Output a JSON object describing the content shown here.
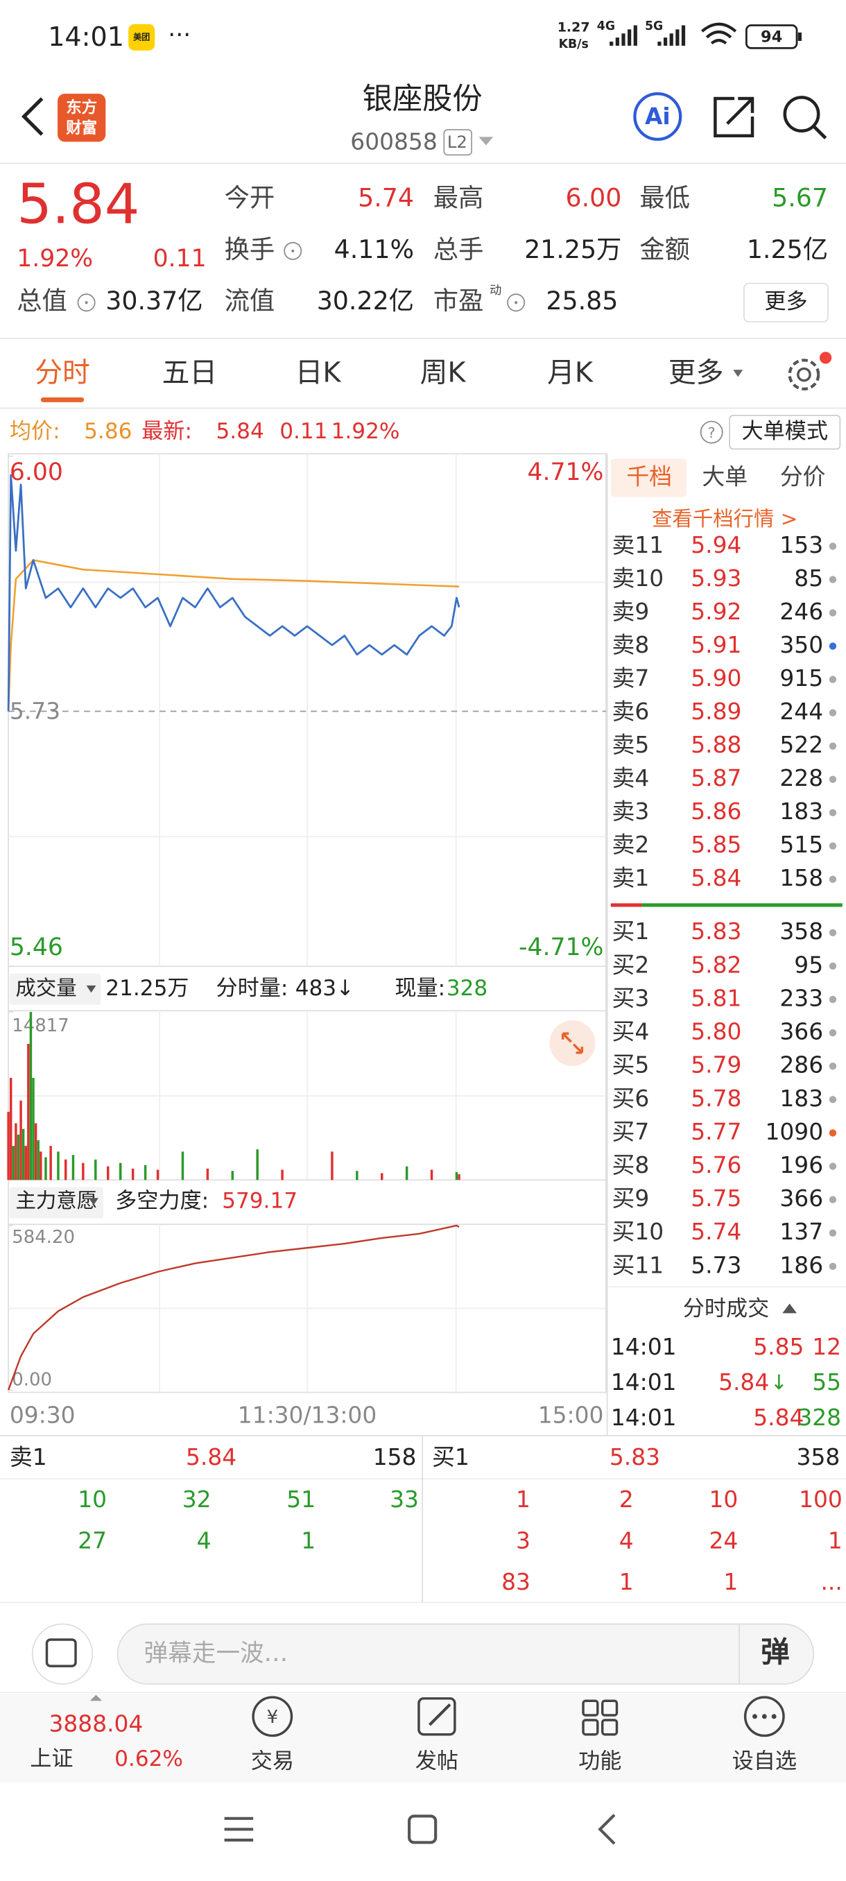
{
  "status_bar": {
    "time": "14:01",
    "app_icon": "美团",
    "speed": "1.27",
    "speed_unit": "KB/s",
    "net1": "4G",
    "net2": "5G",
    "battery": "94"
  },
  "header": {
    "logo": [
      "东方",
      "财富"
    ],
    "title": "银座股份",
    "code": "600858",
    "level": "L2",
    "ai": "Ai"
  },
  "quote": {
    "price": "5.84",
    "change_pct": "1.92%",
    "change": "0.11",
    "more": "更多",
    "fields": [
      {
        "label": "今开",
        "value": "5.74",
        "color": "#e03030"
      },
      {
        "label": "最高",
        "value": "6.00",
        "color": "#e03030"
      },
      {
        "label": "最低",
        "value": "5.67",
        "color": "#2a9a2a"
      },
      {
        "label": "换手",
        "value": "4.11%"
      },
      {
        "label": "总手",
        "value": "21.25万"
      },
      {
        "label": "金额",
        "value": "1.25亿"
      },
      {
        "label": "总值",
        "value": "30.37亿"
      },
      {
        "label": "流值",
        "value": "30.22亿"
      },
      {
        "label": "市盈",
        "super": "动",
        "value": "25.85"
      }
    ]
  },
  "tabs": {
    "items": [
      "分时",
      "五日",
      "日K",
      "周K",
      "月K",
      "更多"
    ],
    "active": 0
  },
  "summary": {
    "avg_label": "均价:",
    "avg": "5.86",
    "latest_label": "最新:",
    "latest": "5.84",
    "change": "0.11",
    "change_pct": "1.92%",
    "mode": "大单模式"
  },
  "price_chart": {
    "ylim": [
      5.46,
      6.0
    ],
    "top_label": "6.00",
    "bottom_label": "5.46",
    "top_pct": "4.71%",
    "bottom_pct": "-4.71%",
    "prev_close": 5.73,
    "x": [
      "09:30",
      "09:31",
      "09:33",
      "09:35",
      "09:37",
      "09:40",
      "09:45",
      "09:50",
      "09:55",
      "10:00",
      "10:05",
      "10:10",
      "10:15",
      "10:20",
      "10:25",
      "10:30",
      "10:35",
      "10:40",
      "10:45",
      "10:50",
      "10:55",
      "11:00",
      "11:05",
      "11:10",
      "11:15",
      "11:20",
      "11:25",
      "11:30",
      "13:05",
      "13:10",
      "13:15",
      "13:20",
      "13:25",
      "13:30",
      "13:35",
      "13:40",
      "13:45",
      "13:50",
      "13:55",
      "13:58",
      "14:00",
      "14:01"
    ],
    "price": [
      5.73,
      5.98,
      5.9,
      5.97,
      5.86,
      5.89,
      5.85,
      5.86,
      5.84,
      5.86,
      5.84,
      5.86,
      5.85,
      5.86,
      5.84,
      5.85,
      5.82,
      5.85,
      5.84,
      5.86,
      5.84,
      5.85,
      5.83,
      5.82,
      5.81,
      5.82,
      5.81,
      5.82,
      5.81,
      5.8,
      5.81,
      5.79,
      5.8,
      5.79,
      5.8,
      5.79,
      5.81,
      5.82,
      5.81,
      5.82,
      5.85,
      5.84
    ],
    "avg_x": [
      "09:30",
      "09:31",
      "09:33",
      "09:40",
      "10:00",
      "10:30",
      "11:00",
      "11:30",
      "13:30",
      "14:01"
    ],
    "avg": [
      5.73,
      5.8,
      5.87,
      5.89,
      5.88,
      5.875,
      5.87,
      5.868,
      5.865,
      5.862
    ],
    "xtick_labels": [
      "09:30",
      "11:30/13:00",
      "15:00"
    ]
  },
  "volume_chart": {
    "label": "成交量",
    "total": "21.25万",
    "period_label": "分时量:",
    "period": "483",
    "arrow": "↓",
    "current_label": "现量:",
    "current": "328",
    "max_label": "14817",
    "ylim": [
      0,
      14817
    ],
    "x": [
      "09:30",
      "09:31",
      "09:32",
      "09:33",
      "09:34",
      "09:35",
      "09:36",
      "09:37",
      "09:38",
      "09:39",
      "09:40",
      "09:41",
      "09:42",
      "09:43",
      "09:45",
      "09:47",
      "09:50",
      "09:53",
      "09:56",
      "10:00",
      "10:05",
      "10:10",
      "10:15",
      "10:20",
      "10:25",
      "10:30",
      "10:40",
      "10:50",
      "11:00",
      "11:10",
      "11:20",
      "13:10",
      "13:20",
      "13:30",
      "13:40",
      "13:50",
      "14:00",
      "14:01"
    ],
    "values": [
      6000,
      9000,
      3000,
      5000,
      4000,
      7000,
      4500,
      3000,
      12000,
      14817,
      9000,
      5000,
      3500,
      2500,
      2000,
      3000,
      2500,
      1800,
      2200,
      1500,
      1800,
      1200,
      1500,
      1000,
      1300,
      900,
      2500,
      1000,
      800,
      2700,
      900,
      2500,
      800,
      600,
      1200,
      900,
      700,
      500
    ],
    "colors": [
      "#e03030",
      "#e03030",
      "#2a9a2a",
      "#e03030",
      "#2a9a2a",
      "#e03030",
      "#2a9a2a",
      "#e03030",
      "#e03030",
      "#2a9a2a",
      "#2a9a2a",
      "#e03030",
      "#2a9a2a",
      "#e03030",
      "#2a9a2a",
      "#e03030",
      "#2a9a2a",
      "#e03030",
      "#2a9a2a",
      "#e03030",
      "#2a9a2a",
      "#e03030",
      "#2a9a2a",
      "#e03030",
      "#2a9a2a",
      "#e03030",
      "#2a9a2a",
      "#e03030",
      "#2a9a2a",
      "#2a9a2a",
      "#e03030",
      "#e03030",
      "#2a9a2a",
      "#e03030",
      "#2a9a2a",
      "#e03030",
      "#2a9a2a",
      "#e03030"
    ]
  },
  "strength_chart": {
    "label": "主力意愿",
    "name": "多空力度:",
    "value": "579.17",
    "top_label": "584.20",
    "bottom_label": "0.00",
    "ylim": [
      0,
      584.2
    ],
    "x": [
      "09:30",
      "09:35",
      "09:40",
      "09:50",
      "10:00",
      "10:15",
      "10:30",
      "10:45",
      "11:00",
      "11:15",
      "11:30",
      "13:15",
      "13:30",
      "13:45",
      "14:00",
      "14:01"
    ],
    "values": [
      0,
      120,
      200,
      280,
      330,
      380,
      420,
      450,
      470,
      490,
      505,
      520,
      540,
      555,
      584.2,
      579.17
    ]
  },
  "order_book": {
    "tabs": [
      "千档",
      "大单",
      "分价"
    ],
    "active": 0,
    "link": "查看千档行情 >",
    "asks": [
      {
        "label": "卖11",
        "price": "5.94",
        "vol": "153"
      },
      {
        "label": "卖10",
        "price": "5.93",
        "vol": "85"
      },
      {
        "label": "卖9",
        "price": "5.92",
        "vol": "246"
      },
      {
        "label": "卖8",
        "price": "5.91",
        "vol": "350",
        "dot": "#3b6fd8"
      },
      {
        "label": "卖7",
        "price": "5.90",
        "vol": "915"
      },
      {
        "label": "卖6",
        "price": "5.89",
        "vol": "244"
      },
      {
        "label": "卖5",
        "price": "5.88",
        "vol": "522"
      },
      {
        "label": "卖4",
        "price": "5.87",
        "vol": "228"
      },
      {
        "label": "卖3",
        "price": "5.86",
        "vol": "183"
      },
      {
        "label": "卖2",
        "price": "5.85",
        "vol": "515"
      },
      {
        "label": "卖1",
        "price": "5.84",
        "vol": "158"
      }
    ],
    "bids": [
      {
        "label": "买1",
        "price": "5.83",
        "vol": "358"
      },
      {
        "label": "买2",
        "price": "5.82",
        "vol": "95"
      },
      {
        "label": "买3",
        "price": "5.81",
        "vol": "233"
      },
      {
        "label": "买4",
        "price": "5.80",
        "vol": "366"
      },
      {
        "label": "买5",
        "price": "5.79",
        "vol": "286"
      },
      {
        "label": "买6",
        "price": "5.78",
        "vol": "183"
      },
      {
        "label": "买7",
        "price": "5.77",
        "vol": "1090",
        "dot": "#e8632a"
      },
      {
        "label": "买8",
        "price": "5.76",
        "vol": "196"
      },
      {
        "label": "买9",
        "price": "5.75",
        "vol": "366"
      },
      {
        "label": "买10",
        "price": "5.74",
        "vol": "137"
      },
      {
        "label": "买11",
        "price": "5.73",
        "vol": "186"
      }
    ],
    "trades_title": "分时成交",
    "trades": [
      {
        "time": "14:01",
        "price": "5.85",
        "vol": "12",
        "vol_color": "#e03030"
      },
      {
        "time": "14:01",
        "price": "5.84",
        "arrow": "↓",
        "vol": "55",
        "vol_color": "#2a9a2a"
      },
      {
        "time": "14:01",
        "price": "5.84",
        "vol": "328",
        "vol_color": "#2a9a2a"
      }
    ]
  },
  "queue": {
    "sell": {
      "label": "卖1",
      "price": "5.84",
      "vol": "158",
      "orders": [
        "10",
        "32",
        "51",
        "33",
        "27",
        "4",
        "1"
      ]
    },
    "buy": {
      "label": "买1",
      "price": "5.83",
      "vol": "358",
      "orders": [
        "1",
        "2",
        "10",
        "100",
        "3",
        "4",
        "24",
        "1",
        "83",
        "1",
        "1",
        "..."
      ]
    }
  },
  "danmaku": {
    "placeholder": "弹幕走一波…",
    "button": "弹"
  },
  "nav": {
    "index_value": "3888.04",
    "index_name": "上证",
    "index_pct": "0.62%",
    "items": [
      "交易",
      "发帖",
      "功能",
      "设自选"
    ]
  }
}
